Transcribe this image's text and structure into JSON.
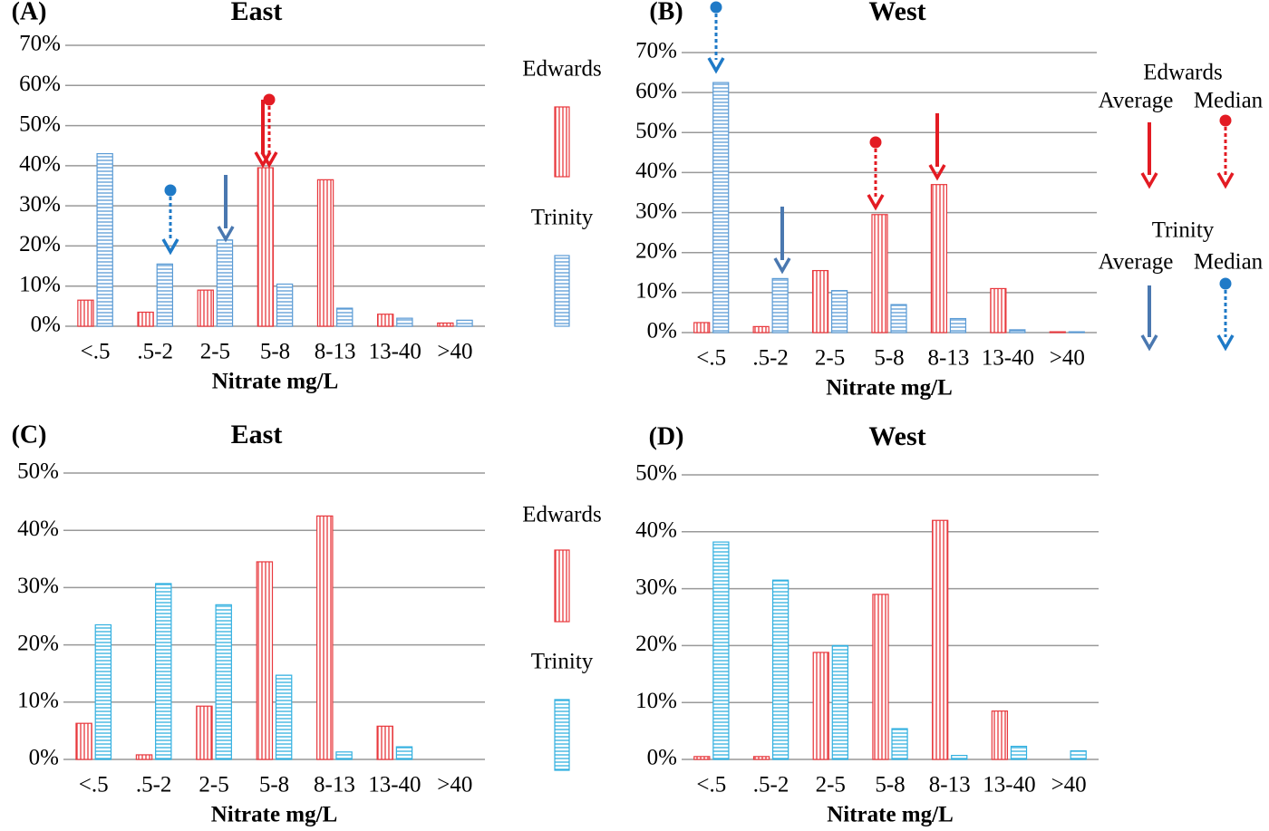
{
  "chart_data": [
    {
      "type": "bar",
      "panel": "(A)",
      "title": "East",
      "x_label": "Nitrate mg/L",
      "categories": [
        "<.5",
        ".5-2",
        "2-5",
        "5-8",
        "8-13",
        "13-40",
        ">40"
      ],
      "series": [
        {
          "name": "Edwards",
          "color": "#e8383d",
          "values": [
            6.5,
            3.5,
            9,
            39.5,
            36.5,
            3,
            0.8
          ]
        },
        {
          "name": "Trinity",
          "color": "#5b9bd5",
          "values": [
            43,
            15.5,
            21.5,
            10.5,
            4.5,
            2,
            1.5
          ]
        }
      ],
      "ylim": [
        0,
        70
      ],
      "yticks": [
        {
          "value": 0,
          "label": "0%"
        },
        {
          "value": 10,
          "label": "10%"
        },
        {
          "value": 20,
          "label": "20%"
        },
        {
          "value": 30,
          "label": "30%"
        },
        {
          "value": 40,
          "label": "40%"
        },
        {
          "value": 50,
          "label": "50%"
        },
        {
          "value": 60,
          "label": "60%"
        },
        {
          "value": 70,
          "label": "70%"
        }
      ],
      "grid": true
    },
    {
      "type": "bar",
      "panel": "(B)",
      "title": "West",
      "x_label": "Nitrate mg/L",
      "categories": [
        "<.5",
        ".5-2",
        "2-5",
        "5-8",
        "8-13",
        "13-40",
        ">40"
      ],
      "series": [
        {
          "name": "Edwards",
          "color": "#e8383d",
          "values": [
            2.5,
            1.5,
            15.5,
            29.5,
            37,
            11,
            0.2
          ]
        },
        {
          "name": "Trinity",
          "color": "#5b9bd5",
          "values": [
            62.5,
            13.5,
            10.5,
            7,
            3.5,
            0.7,
            0.2
          ]
        }
      ],
      "marker_labels": [
        "Average",
        "Median"
      ],
      "ylim": [
        0,
        70
      ],
      "yticks": [
        {
          "value": 0,
          "label": "0%"
        },
        {
          "value": 10,
          "label": "10%"
        },
        {
          "value": 20,
          "label": "20%"
        },
        {
          "value": 30,
          "label": "30%"
        },
        {
          "value": 40,
          "label": "40%"
        },
        {
          "value": 50,
          "label": "50%"
        },
        {
          "value": 60,
          "label": "60%"
        },
        {
          "value": 70,
          "label": "70%"
        }
      ],
      "grid": true
    },
    {
      "type": "bar",
      "panel": "(C)",
      "title": "East",
      "x_label": "Nitrate mg/L",
      "categories": [
        "<.5",
        ".5-2",
        "2-5",
        "5-8",
        "8-13",
        "13-40",
        ">40"
      ],
      "series": [
        {
          "name": "Edwards",
          "color": "#e8383d",
          "values": [
            6.3,
            0.8,
            9.3,
            34.5,
            42.5,
            5.8,
            0
          ]
        },
        {
          "name": "Trinity",
          "color": "#33b0e0",
          "values": [
            23.5,
            30.7,
            27,
            14.7,
            1.3,
            2.2,
            0
          ]
        }
      ],
      "ylim": [
        0,
        50
      ],
      "yticks": [
        {
          "value": 0,
          "label": "0%"
        },
        {
          "value": 10,
          "label": "10%"
        },
        {
          "value": 20,
          "label": "20%"
        },
        {
          "value": 30,
          "label": "30%"
        },
        {
          "value": 40,
          "label": "40%"
        },
        {
          "value": 50,
          "label": "50%"
        }
      ],
      "grid": true
    },
    {
      "type": "bar",
      "panel": "(D)",
      "title": "West",
      "x_label": "Nitrate mg/L",
      "categories": [
        "<.5",
        ".5-2",
        "2-5",
        "5-8",
        "8-13",
        "13-40",
        ">40"
      ],
      "series": [
        {
          "name": "Edwards",
          "color": "#e8383d",
          "values": [
            0.5,
            0.5,
            18.8,
            29,
            42,
            8.5,
            0
          ]
        },
        {
          "name": "Trinity",
          "color": "#33b0e0",
          "values": [
            38.2,
            31.5,
            20,
            5.4,
            0.7,
            2.3,
            1.5
          ]
        }
      ],
      "ylim": [
        0,
        50
      ],
      "yticks": [
        {
          "value": 0,
          "label": "0%"
        },
        {
          "value": 10,
          "label": "10%"
        },
        {
          "value": 20,
          "label": "20%"
        },
        {
          "value": 30,
          "label": "30%"
        },
        {
          "value": 40,
          "label": "40%"
        },
        {
          "value": 50,
          "label": "50%"
        }
      ],
      "grid": true
    }
  ]
}
